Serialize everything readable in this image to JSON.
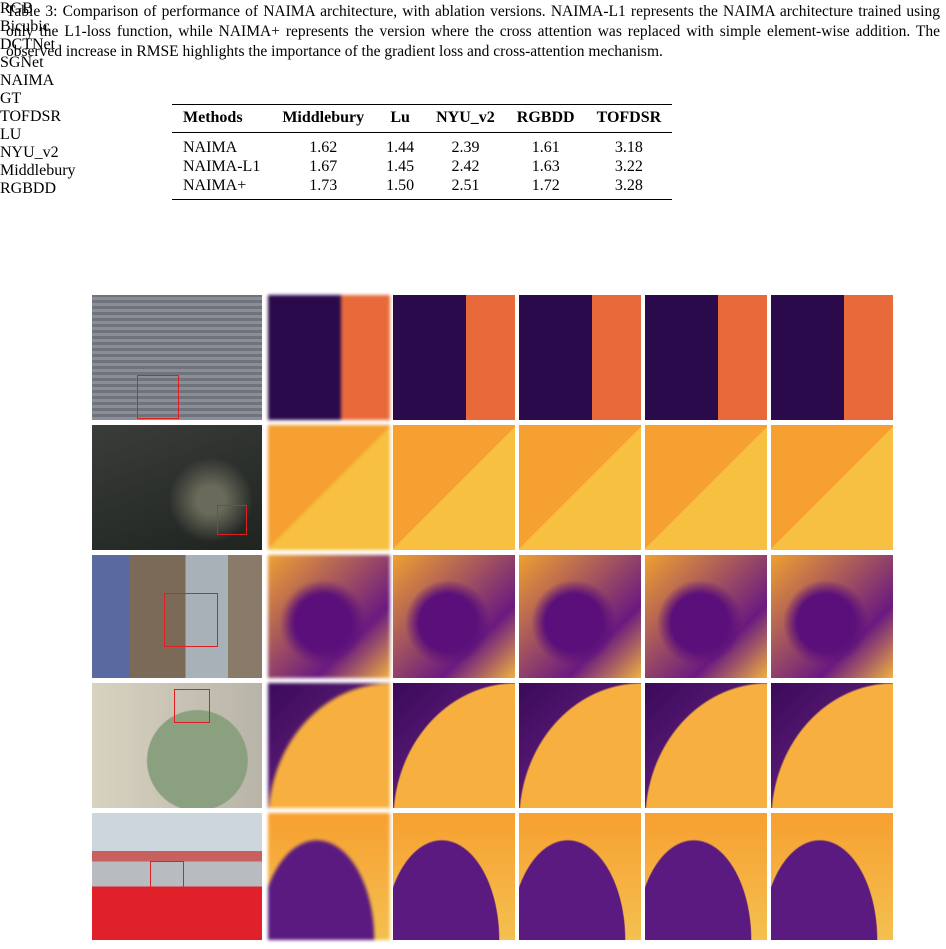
{
  "caption": "Table 3: Comparison of performance of NAIMA architecture, with ablation versions. NAIMA-L1 represents the NAIMA architecture trained using only the L1-loss function, while NAIMA+ represents the version where the cross attention was replaced with simple element-wise addition. The observed increase in RMSE highlights the importance of the gradient loss and cross-attention mechanism.",
  "table": {
    "header": [
      "Methods",
      "Middlebury",
      "Lu",
      "NYU_v2",
      "RGBDD",
      "TOFDSR"
    ],
    "rows": [
      [
        "NAIMA",
        "1.62",
        "1.44",
        "2.39",
        "1.61",
        "3.18"
      ],
      [
        "NAIMA-L1",
        "1.67",
        "1.45",
        "2.42",
        "1.63",
        "3.22"
      ],
      [
        "NAIMA+",
        "1.73",
        "1.50",
        "2.51",
        "1.72",
        "3.28"
      ]
    ]
  },
  "figure": {
    "columns": [
      "RGB",
      "Bicubic",
      "DCTNet",
      "SGNet",
      "NAIMA",
      "GT"
    ],
    "rows": [
      "TOFDSR",
      "LU",
      "NYU_v2",
      "Middlebury",
      "RGBDD"
    ]
  }
}
